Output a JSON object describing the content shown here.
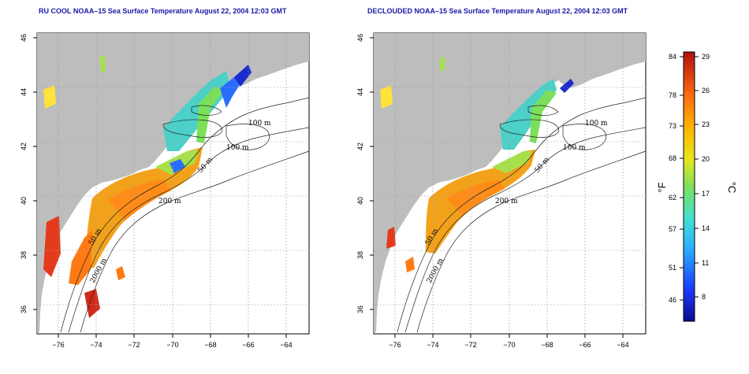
{
  "maps": [
    {
      "title": "RU COOL NOAA–15 Sea Surface Temperature August 22, 2004 12:03 GMT",
      "isobath_labels": [
        "100 m",
        "100 m",
        "50 m",
        "200 m",
        "50 m",
        "2000 m"
      ]
    },
    {
      "title": "DECLOUDED NOAA–15 Sea Surface Temperature August 22, 2004 12:03 GMT",
      "isobath_labels": [
        "100 m",
        "100 m",
        "50 m",
        "200 m",
        "50 m",
        "2000 m"
      ]
    }
  ],
  "axes": {
    "lon_labels": [
      "−76",
      "−74",
      "−72",
      "−70",
      "−68",
      "−66",
      "−64"
    ],
    "lat_labels": [
      "36",
      "38",
      "40",
      "42",
      "44",
      "46"
    ],
    "lon_range": [
      -77.2,
      -62.8
    ],
    "lat_range": [
      35,
      46
    ]
  },
  "colorbar": {
    "fahrenheit_label": "°F",
    "celsius_label": "°C",
    "fahrenheit_ticks": [
      "84",
      "78",
      "73",
      "68",
      "62",
      "57",
      "51",
      "46"
    ],
    "celsius_ticks": [
      "29",
      "26",
      "23",
      "20",
      "17",
      "14",
      "11",
      "8"
    ],
    "colors": {
      "land": "#bdbdbd",
      "sea_no_data": "#ffffff",
      "warm": "#c81e1e",
      "mid": "#f2b000",
      "cool": "#55d070",
      "cold": "#1a3cff"
    }
  }
}
